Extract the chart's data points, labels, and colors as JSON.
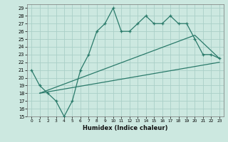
{
  "xlabel": "Humidex (Indice chaleur)",
  "bg_color": "#cce8e0",
  "grid_color": "#aacfc8",
  "line_color": "#2a7a6a",
  "xlim": [
    -0.5,
    23.5
  ],
  "ylim": [
    15,
    29.5
  ],
  "yticks": [
    15,
    16,
    17,
    18,
    19,
    20,
    21,
    22,
    23,
    24,
    25,
    26,
    27,
    28,
    29
  ],
  "xticks": [
    0,
    1,
    2,
    3,
    4,
    5,
    6,
    7,
    8,
    9,
    10,
    11,
    12,
    13,
    14,
    15,
    16,
    17,
    18,
    19,
    20,
    21,
    22,
    23
  ],
  "series1_x": [
    0,
    1,
    2,
    3,
    4,
    5,
    6,
    7,
    8,
    9,
    10,
    11,
    12,
    13,
    14,
    15,
    16,
    17,
    18,
    19,
    20,
    21,
    22,
    23
  ],
  "series1_y": [
    21,
    19,
    18,
    17,
    15,
    17,
    21,
    23,
    26,
    27,
    29,
    26,
    26,
    27,
    28,
    27,
    27,
    28,
    27,
    27,
    25,
    23,
    23,
    22.5
  ],
  "series2_x": [
    1,
    23
  ],
  "series2_y": [
    18,
    22
  ],
  "series3_x": [
    1,
    20,
    23
  ],
  "series3_y": [
    18,
    25.5,
    22.5
  ]
}
